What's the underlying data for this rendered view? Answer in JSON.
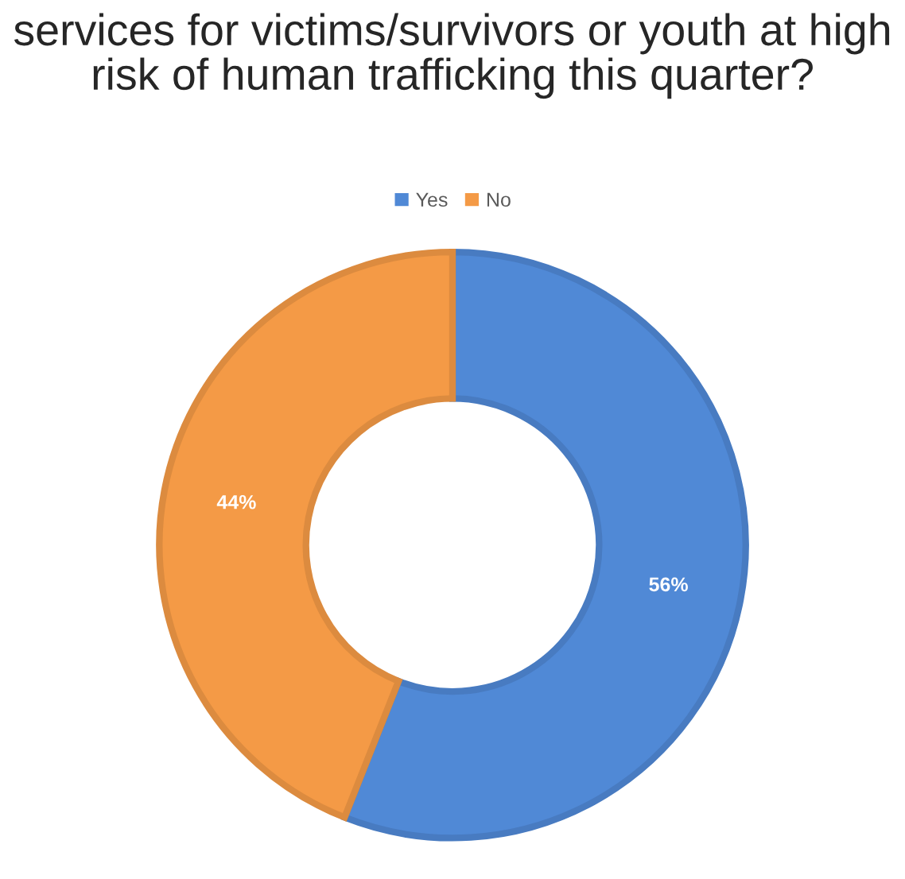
{
  "chart_data": {
    "type": "donut",
    "title": "services for victims/survivors or youth at high risk of human trafficking this quarter?",
    "categories": [
      "Yes",
      "No"
    ],
    "values": [
      56,
      44
    ],
    "colors": [
      "#5089d6",
      "#f49a46"
    ],
    "value_labels": [
      "56%",
      "44%"
    ],
    "legend": "top"
  }
}
